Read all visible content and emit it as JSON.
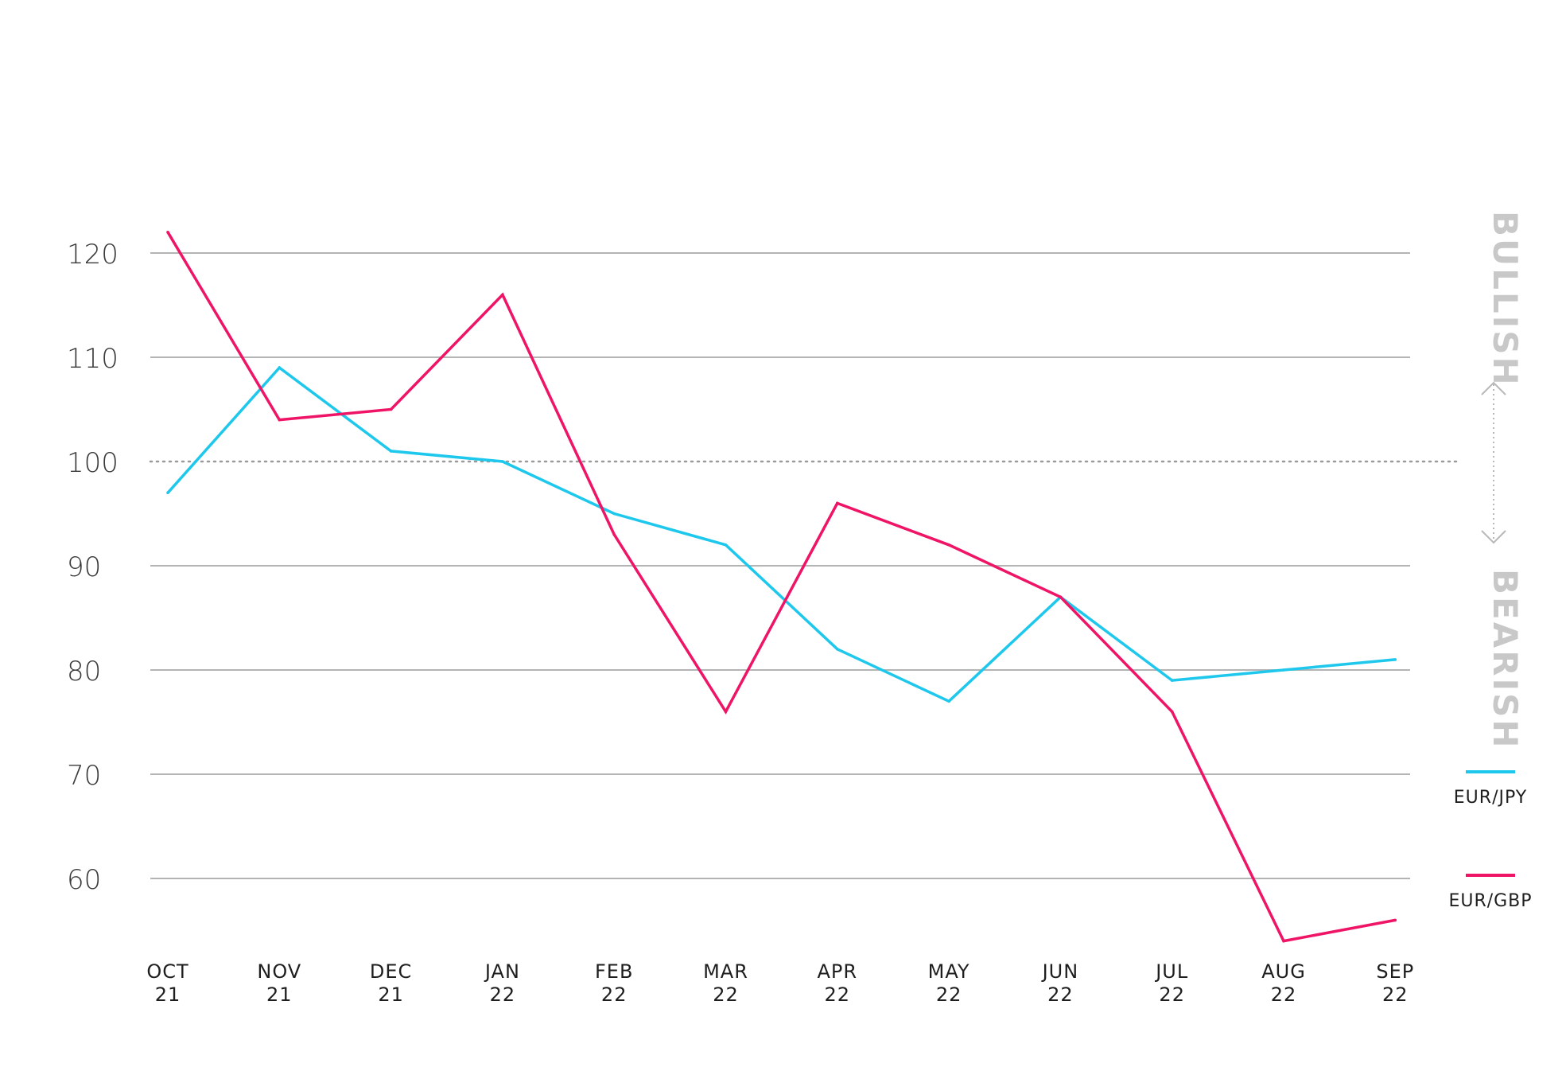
{
  "chart_data": {
    "type": "line",
    "categories": [
      [
        "OCT",
        "21"
      ],
      [
        "NOV",
        "21"
      ],
      [
        "DEC",
        "21"
      ],
      [
        "JAN",
        "22"
      ],
      [
        "FEB",
        "22"
      ],
      [
        "MAR",
        "22"
      ],
      [
        "APR",
        "22"
      ],
      [
        "MAY",
        "22"
      ],
      [
        "JUN",
        "22"
      ],
      [
        "JUL",
        "22"
      ],
      [
        "AUG",
        "22"
      ],
      [
        "SEP",
        "22"
      ]
    ],
    "yticks": [
      60,
      70,
      80,
      90,
      100,
      110,
      120
    ],
    "ylim": [
      52,
      124
    ],
    "reference_line": 100,
    "grid": true,
    "series": [
      {
        "name": "EUR/JPY",
        "color": "#1ec8ec",
        "values": [
          97,
          109,
          101,
          100,
          95,
          92,
          82,
          77,
          87,
          79,
          80,
          81
        ]
      },
      {
        "name": "EUR/GBP",
        "color": "#ef1466",
        "values": [
          122,
          104,
          105,
          116,
          93,
          76,
          96,
          92,
          87,
          76,
          54,
          56
        ]
      }
    ],
    "sentiment_labels": {
      "top": "BULLISH",
      "bottom": "BEARISH"
    },
    "legend_position": "right"
  }
}
